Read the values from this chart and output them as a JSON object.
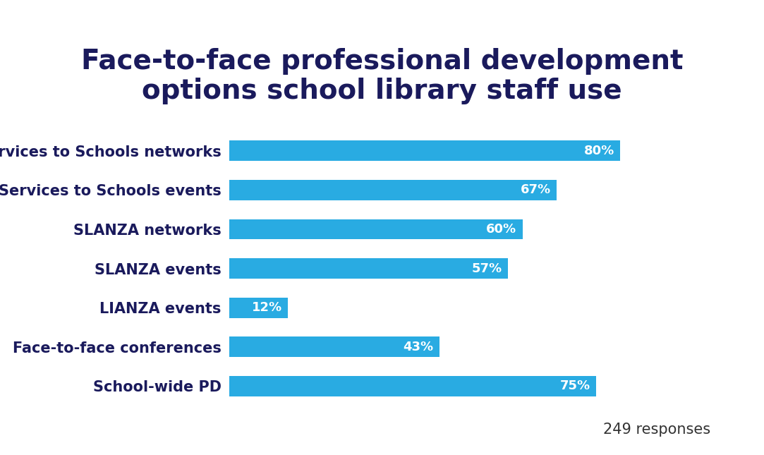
{
  "title_line1": "Face-to-face professional development",
  "title_line2": "options school library staff use",
  "categories": [
    "School-wide PD",
    "Face-to-face conferences",
    "LIANZA events",
    "SLANZA events",
    "SLANZA networks",
    "Services to Schools events",
    "Services to Schools networks"
  ],
  "values": [
    75,
    43,
    12,
    57,
    60,
    67,
    80
  ],
  "bar_color": "#29ABE2",
  "label_color": "#ffffff",
  "title_color": "#1a1a5c",
  "ylabel_color": "#1a1a5c",
  "responses_text": "249 responses",
  "responses_color": "#333333",
  "background_color": "#ffffff",
  "xlim": [
    0,
    100
  ],
  "title_fontsize": 28,
  "label_fontsize": 13,
  "tick_fontsize": 15,
  "responses_fontsize": 15,
  "bar_height": 0.52
}
